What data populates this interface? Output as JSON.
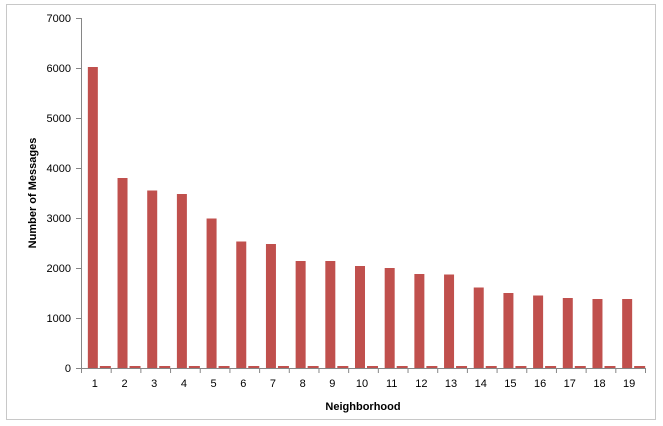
{
  "chart_data": {
    "type": "bar",
    "title": "",
    "xlabel": "Neighborhood",
    "ylabel": "Number of Messages",
    "ylim": [
      0,
      7000
    ],
    "y_ticks": [
      0,
      1000,
      2000,
      3000,
      4000,
      5000,
      6000,
      7000
    ],
    "grid": false,
    "legend": "none",
    "categories": [
      "1",
      "2",
      "3",
      "4",
      "5",
      "6",
      "7",
      "8",
      "9",
      "10",
      "11",
      "12",
      "13",
      "14",
      "15",
      "16",
      "17",
      "18",
      "19"
    ],
    "series": [
      {
        "color": "#c0504d",
        "values": [
          6020,
          3800,
          3550,
          3480,
          2990,
          2530,
          2480,
          2140,
          2140,
          2040,
          2000,
          1880,
          1870,
          1610,
          1500,
          1450,
          1400,
          1380,
          1380
        ]
      },
      {
        "color": "#c0504d",
        "values": [
          40,
          40,
          40,
          40,
          40,
          40,
          40,
          40,
          40,
          40,
          40,
          40,
          40,
          40,
          40,
          40,
          40,
          40,
          40
        ]
      }
    ]
  }
}
